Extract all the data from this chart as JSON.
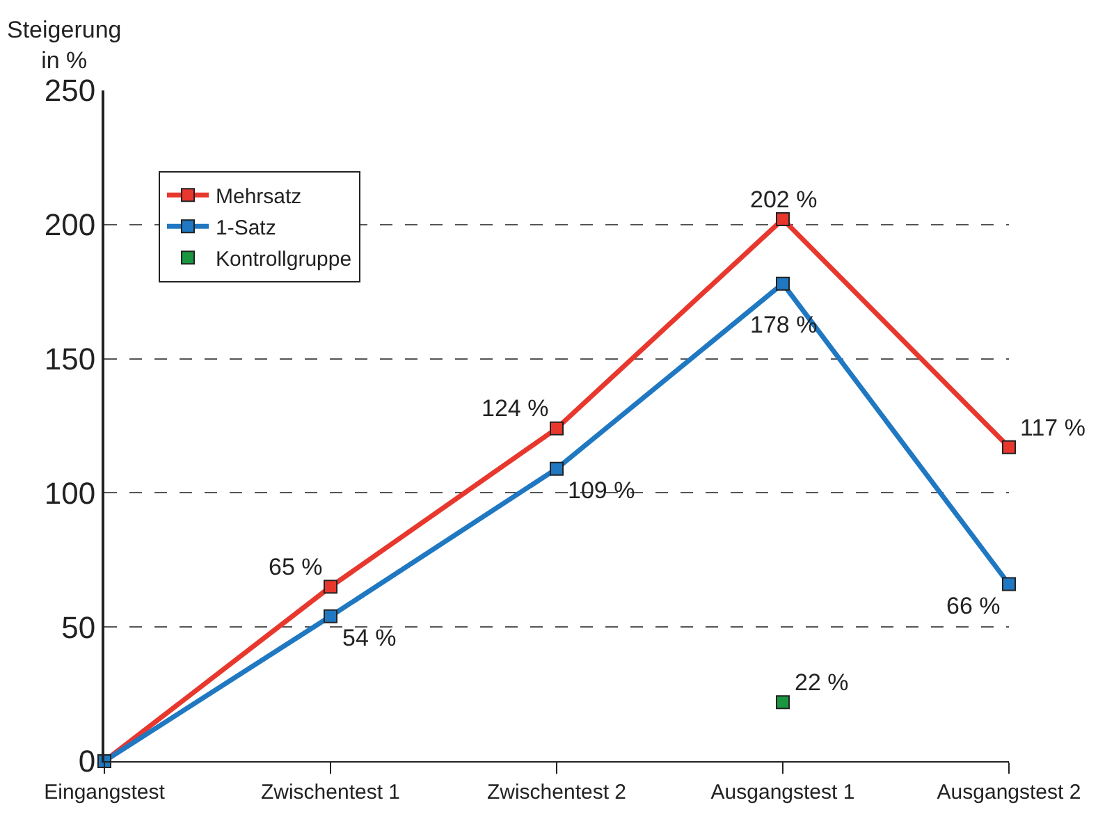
{
  "chart_data": {
    "type": "line",
    "ylabel": "Steigerung\nin %",
    "categories": [
      "Eingangstest",
      "Zwischentest 1",
      "Zwischentest 2",
      "Ausgangstest 1",
      "Ausgangstest 2"
    ],
    "series": [
      {
        "name": "Mehrsatz",
        "color": "#e8382e",
        "values": [
          0,
          65,
          124,
          202,
          117
        ],
        "value_labels": [
          null,
          "65 %",
          "124 %",
          "202 %",
          "117 %"
        ]
      },
      {
        "name": "1-Satz",
        "color": "#1f78c1",
        "values": [
          0,
          54,
          109,
          178,
          66
        ],
        "value_labels": [
          null,
          "54 %",
          "109 %",
          "178 %",
          "66 %"
        ]
      },
      {
        "name": "Kontrollgruppe",
        "type": "scatter",
        "color": "#1a9641",
        "values": [
          null,
          null,
          null,
          22,
          null
        ],
        "value_labels": [
          null,
          null,
          null,
          "22 %",
          null
        ]
      }
    ],
    "ylim": [
      0,
      250
    ],
    "yticks": [
      0,
      50,
      100,
      150,
      200,
      250
    ],
    "grid": "y",
    "legend": "top left",
    "marker": "square"
  }
}
